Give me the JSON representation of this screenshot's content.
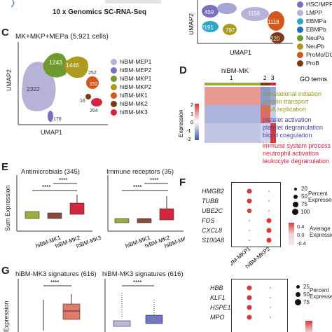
{
  "top_caption": "10 x Genomics SC-RNA-Seq",
  "panels": {
    "C": "C",
    "D": "D",
    "E": "E",
    "F": "F",
    "G": "G"
  },
  "panel_c": {
    "title": "MK+MKP+MEPa (5,921 cells)",
    "xlabel": "UMAP1",
    "ylabel": "UMAP2",
    "cluster_counts": [
      "1243",
      "1446",
      "2322",
      "252",
      "152",
      "16",
      "264",
      "178"
    ],
    "legend": [
      {
        "label": "hiBM-MEP1",
        "color": "#b6b2d8"
      },
      {
        "label": "hiBM-MEP2",
        "color": "#7a6fc2"
      },
      {
        "label": "hiBM-MKP1",
        "color": "#6e9a2e"
      },
      {
        "label": "hiBM-MKP2",
        "color": "#ad9a1e"
      },
      {
        "label": "hiBM-MK1",
        "color": "#d4581c"
      },
      {
        "label": "hiBM-MK2",
        "color": "#7a3a1a"
      },
      {
        "label": "hiBM-MK3",
        "color": "#d4253f"
      }
    ]
  },
  "panel_top_right": {
    "ylabel": "UMAP2",
    "xlabel": "UMAP1",
    "cluster_counts": [
      "459",
      "1156",
      "2191",
      "797",
      "1118",
      "220"
    ],
    "legend": [
      {
        "label": "HSC/MPP",
        "color": "#7a6fc2"
      },
      {
        "label": "LMPP",
        "color": "#b6b2d8"
      },
      {
        "label": "EBMPa",
        "color": "#2aa7c9"
      },
      {
        "label": "EBMPb",
        "color": "#1f6fb2"
      },
      {
        "label": "NeuPa",
        "color": "#6e9a2e"
      },
      {
        "label": "NeuPb",
        "color": "#ad9a1e"
      },
      {
        "label": "ProMo/DC",
        "color": "#d4581c"
      },
      {
        "label": "ProB",
        "color": "#7a3a1a"
      }
    ]
  },
  "panel_d": {
    "title": "hiBM-MK",
    "column_groups": [
      "1",
      "2",
      "3"
    ],
    "go_header": "GO terms",
    "colorbar_label": "Expression",
    "colorbar_ticks": [
      "2",
      "1",
      "0",
      "-1",
      "-2"
    ],
    "go_terms": [
      {
        "text": "translational initiation",
        "color": "#9a9a1e"
      },
      {
        "text": "protein transport",
        "color": "#9a9a1e"
      },
      {
        "text": "DNA replication",
        "color": "#9a9a1e"
      },
      {
        "text": "platelet activation",
        "color": "#4a4aa8"
      },
      {
        "text": "platelet degranulation",
        "color": "#4a4aa8"
      },
      {
        "text": "blood coagulation",
        "color": "#4a4aa8"
      },
      {
        "text": "immune system process",
        "color": "#d4253f"
      },
      {
        "text": "neutrophil activation",
        "color": "#d4253f"
      },
      {
        "text": "leukocyte degranulation",
        "color": "#d4253f"
      }
    ]
  },
  "panel_e": {
    "ylabel": "Sum Expression",
    "plots": [
      {
        "title": "Antimicrobials (345)",
        "sig": [
          "****",
          "****"
        ],
        "categories": [
          "hiBM-MK1",
          "hiBM-MK2",
          "hiBM-MK3"
        ]
      },
      {
        "title": "Immune receptors (35)",
        "sig": [
          "****",
          "****"
        ],
        "categories": [
          "hiBM-MK1",
          "hiBM-MK2",
          "hiBM-MK3"
        ]
      }
    ]
  },
  "panel_f": {
    "genes_top": [
      "HMGB2",
      "TUBB",
      "UBE2C",
      "FOS",
      "CXCL8",
      "S100A8"
    ],
    "genes_bottom": [
      "HBB",
      "KLF1",
      "HSPE1",
      "MPO"
    ],
    "columns": [
      "hiBM-MKP1",
      "hiBM-MKP2"
    ],
    "size_legend_title": "Percent Expressed",
    "size_legend_values": [
      "20",
      "50",
      "75",
      "100"
    ],
    "color_legend_title": "Average Expression",
    "color_legend_ticks": [
      "0.4",
      "0.0",
      "-0.4"
    ],
    "size_legend_values_bottom": [
      "25",
      "50",
      "75"
    ]
  },
  "panel_g": {
    "ylabel": "Expression",
    "plots": [
      {
        "title": "hiBM-MK3 signatures (616)",
        "sig": "****"
      },
      {
        "title": "hiBM-MK3 signatures (616)",
        "sig": "****"
      }
    ]
  },
  "colors": {
    "mk1": "#9fae3a",
    "mk2": "#8a4a3a",
    "mk3": "#d4253f",
    "heat_red": "#d43a3a",
    "heat_blue": "#3a5aa8"
  }
}
